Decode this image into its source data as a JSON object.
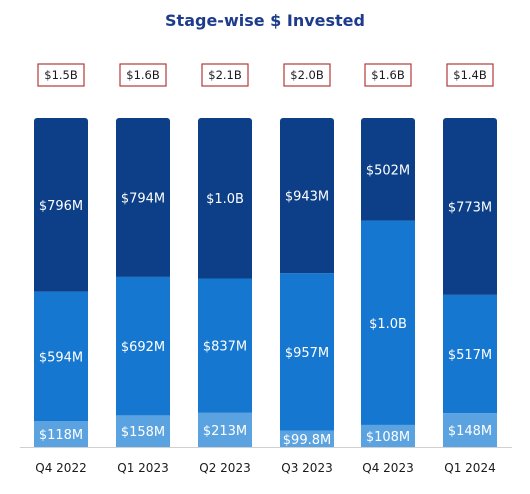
{
  "chart_data": {
    "type": "bar",
    "stacked": true,
    "title": "Stage-wise $ Invested",
    "categories": [
      "Q4 2022",
      "Q1 2023",
      "Q2 2023",
      "Q3 2023",
      "Q4 2023",
      "Q1 2024"
    ],
    "totals": [
      "$1.5B",
      "$1.6B",
      "$2.1B",
      "$2.0B",
      "$1.6B",
      "$1.4B"
    ],
    "series": [
      {
        "values": [
          118,
          158,
          213,
          99.8,
          108,
          148
        ],
        "labels": [
          "$118M",
          "$158M",
          "$213M",
          "$99.8M",
          "$108M",
          "$148M"
        ],
        "color": "#5aa3e0"
      },
      {
        "values": [
          594,
          692,
          837,
          957,
          1000,
          517
        ],
        "labels": [
          "$594M",
          "$692M",
          "$837M",
          "$957M",
          "$1.0B",
          "$517M"
        ],
        "color": "#1577cf"
      },
      {
        "values": [
          796,
          794,
          1000,
          943,
          502,
          773
        ],
        "labels": [
          "$796M",
          "$794M",
          "$1.0B",
          "$943M",
          "$502M",
          "$773M"
        ],
        "color": "#0c3f87"
      }
    ],
    "normalized": true,
    "title_color": "#1d3c8c",
    "total_box_border_color": "#b23a3a"
  }
}
